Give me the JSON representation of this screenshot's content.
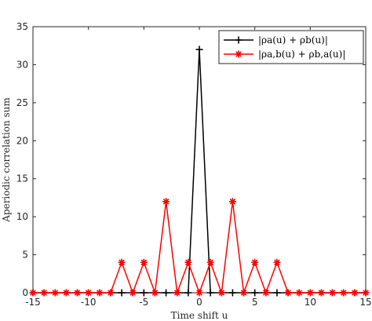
{
  "chart_data": {
    "type": "line",
    "title_cropped": "",
    "xlabel": "Time shift u",
    "ylabel": "Aperiodic correlation sum",
    "xlim": [
      -15,
      15
    ],
    "ylim": [
      0,
      35
    ],
    "xticks": [
      -15,
      -10,
      -5,
      0,
      5,
      10,
      15
    ],
    "yticks": [
      0,
      5,
      10,
      15,
      20,
      25,
      30,
      35
    ],
    "grid": false,
    "legend_placement": "top-right",
    "x": [
      -15,
      -14,
      -13,
      -12,
      -11,
      -10,
      -9,
      -8,
      -7,
      -6,
      -5,
      -4,
      -3,
      -2,
      -1,
      0,
      1,
      2,
      3,
      4,
      5,
      6,
      7,
      8,
      9,
      10,
      11,
      12,
      13,
      14,
      15
    ],
    "series": [
      {
        "name": "|ρa(u) + ρb(u)|",
        "color": "#000000",
        "marker": "plus",
        "values": [
          0,
          0,
          0,
          0,
          0,
          0,
          0,
          0,
          0,
          0,
          0,
          0,
          0,
          0,
          0,
          32,
          0,
          0,
          0,
          0,
          0,
          0,
          0,
          0,
          0,
          0,
          0,
          0,
          0,
          0,
          0
        ]
      },
      {
        "name": "|ρa,b(u) + ρb,a(u)|",
        "color": "#ff0000",
        "marker": "asterisk",
        "values": [
          0,
          0,
          0,
          0,
          0,
          0,
          0,
          0,
          4,
          0,
          4,
          0,
          12,
          0,
          4,
          0,
          4,
          0,
          12,
          0,
          4,
          0,
          4,
          0,
          0,
          0,
          0,
          0,
          0,
          0,
          0
        ]
      }
    ]
  }
}
